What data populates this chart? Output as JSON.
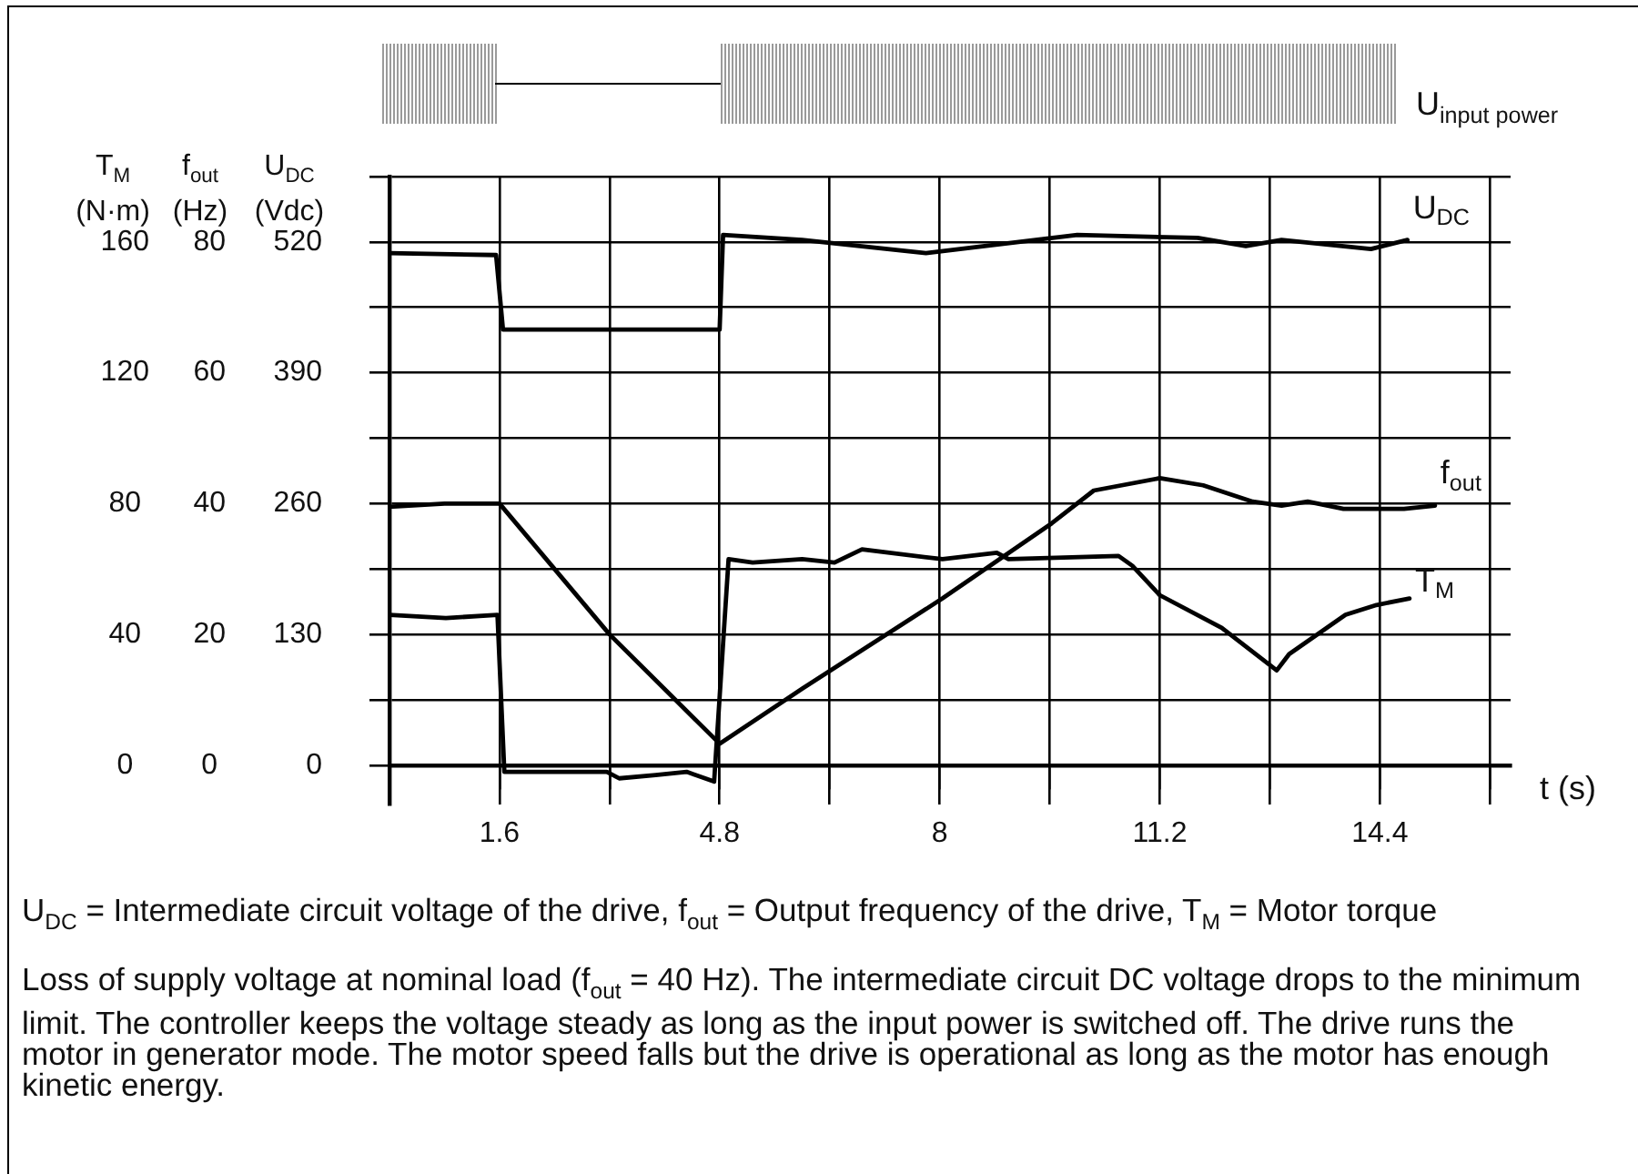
{
  "chart_data": {
    "type": "line",
    "xlabel": "t (s)",
    "ylabel": "U$_{DC}$ (Vdc)",
    "y2label": "f$_{out}$ (Hz)",
    "y3label": "T$_{M}$ (N·m)",
    "xlim": [
      0,
      16.3
    ],
    "xticks": [
      1.6,
      {
        "value": 3.2,
        "label": null
      },
      4.8,
      {
        "value": 6.4,
        "label": null
      },
      8,
      {
        "value": 9.6,
        "label": null
      },
      11.2,
      {
        "value": 12.8,
        "label": null
      },
      14.4,
      {
        "value": 16,
        "label": null
      }
    ],
    "ylim": [
      -39,
      585
    ],
    "yticks": [
      0,
      {
        "value": 65,
        "label": null
      },
      130,
      {
        "value": 195,
        "label": null
      },
      260,
      {
        "value": 325,
        "label": null
      },
      390,
      {
        "value": 455,
        "label": null
      },
      520,
      {
        "value": 585,
        "label": null
      }
    ],
    "y2lim": [
      -6,
      90
    ],
    "y2ticks": [
      0,
      20,
      40,
      60,
      80
    ],
    "y3lim": [
      -12,
      180
    ],
    "y3ticks": [
      0,
      40,
      80,
      120,
      160
    ],
    "grid": true,
    "legend": false,
    "marker": "none",
    "series": [
      {
        "name": "U$_{DC}$",
        "color": "#000000",
        "x": [
          0,
          1.55,
          1.65,
          4.8,
          4.85,
          6.0,
          7.8,
          10.0,
          11.75,
          12.45,
          12.97,
          14.27,
          14.8
        ],
        "values": [
          509,
          507,
          433,
          433,
          527,
          522,
          509,
          527,
          524,
          516,
          522,
          513,
          522
        ]
      },
      {
        "name": "f$_{out}$",
        "color": "#000000",
        "axis": "y2",
        "x": [
          0,
          0.8,
          1.6,
          3.2,
          4.8,
          6.0,
          8.04,
          9.63,
          10.24,
          11.2,
          11.83,
          12.55,
          12.97,
          13.35,
          13.87,
          14.75,
          15.2
        ],
        "values": [
          39.5,
          40,
          40,
          20,
          3.3,
          11.7,
          25.5,
          37,
          42,
          43.9,
          42.8,
          40.3,
          39.7,
          40.3,
          39.2,
          39.2,
          39.7
        ]
      },
      {
        "name": "T$_{M}$",
        "color": "#000000",
        "axis": "y3",
        "x": [
          0,
          0.82,
          1.57,
          1.67,
          3.16,
          3.34,
          3.87,
          4.32,
          4.72,
          4.93,
          5.28,
          6.0,
          6.47,
          6.87,
          8.04,
          8.83,
          9.0,
          10.6,
          10.8,
          11.2,
          12.1,
          12.9,
          13.08,
          13.9,
          14.35,
          14.83
        ],
        "values": [
          46,
          45,
          46,
          -2,
          -2,
          -4,
          -3,
          -2,
          -5,
          63,
          62,
          63,
          62,
          66,
          63,
          65,
          63,
          64,
          61,
          52,
          42,
          29,
          34,
          46,
          49,
          51
        ]
      }
    ],
    "annotations": [
      "U$_{input power}$",
      "U$_{DC}$ = Intermediate circuit voltage of the drive, f$_{out}$ = Output frequency of the drive, T$_{M}$ = Motor torque",
      "Loss of supply voltage at nominal load (f$_{out}$ = 40 Hz). The intermediate circuit DC voltage drops to the minimum limit. The controller keeps the voltage steady as long as the input power is switched off. The drive runs the motor in generator mode. The motor speed falls but the drive is operational as long as the motor has enough kinetic energy."
    ]
  }
}
